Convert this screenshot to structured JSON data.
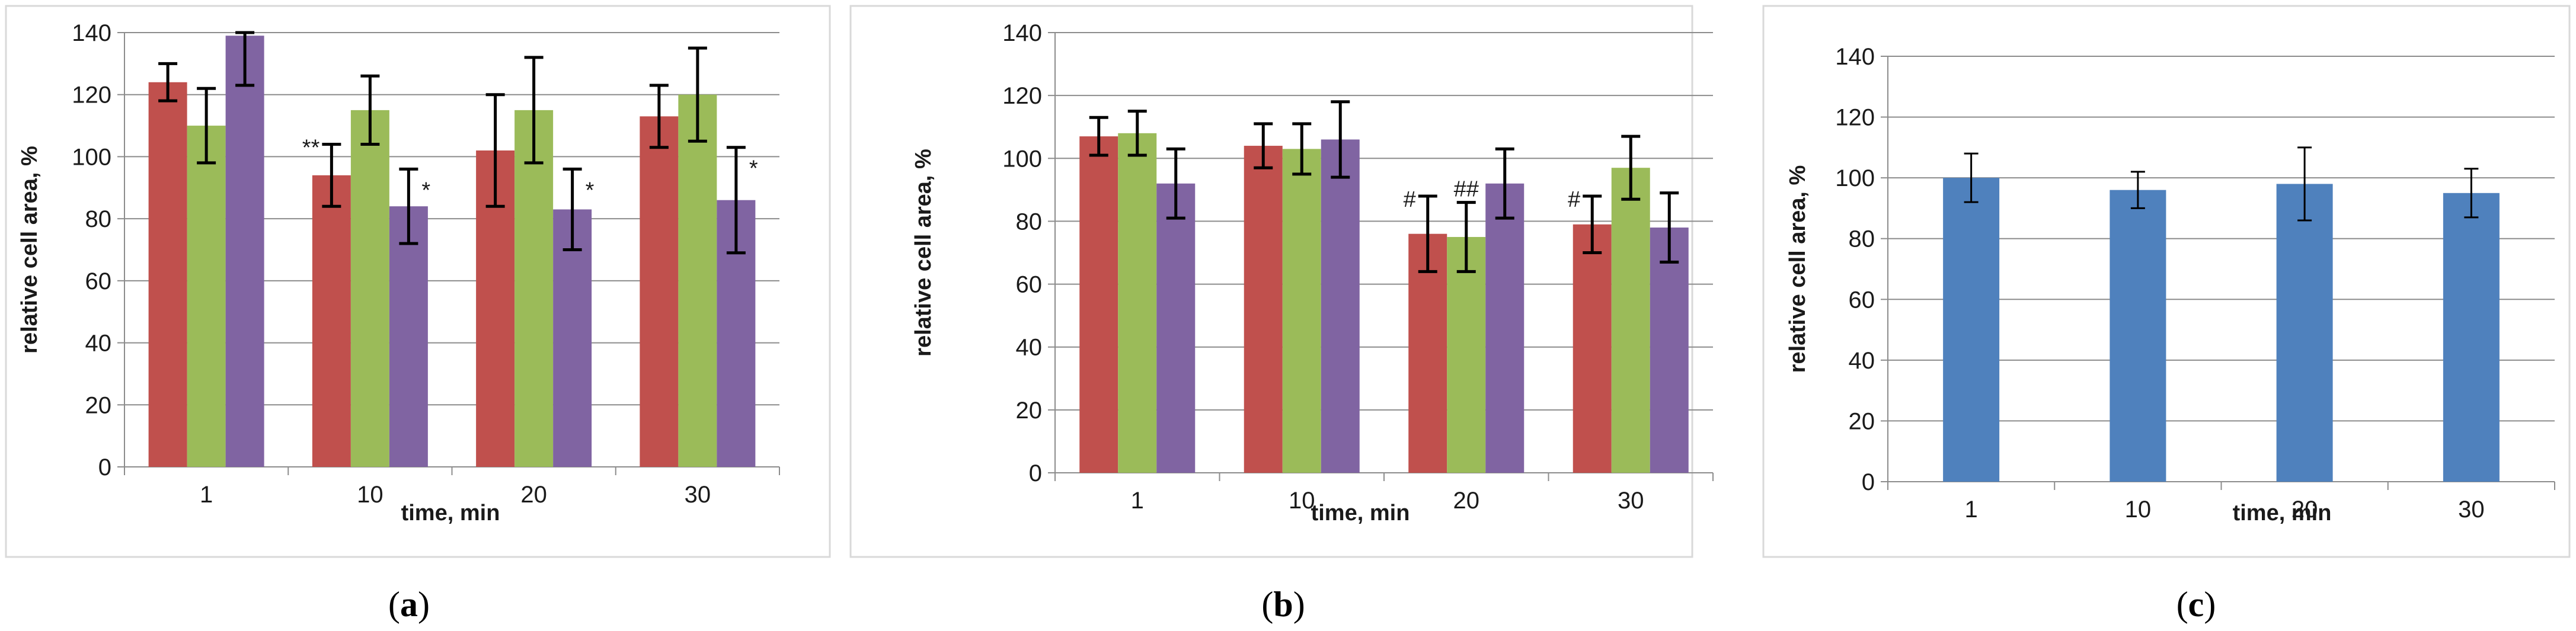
{
  "chart_data": [
    {
      "type": "bar",
      "panel_label": "a",
      "categories": [
        "1",
        "10",
        "20",
        "30"
      ],
      "xlabel": "time, min",
      "ylabel": "relative cell area, %",
      "ylim": [
        0,
        140
      ],
      "yticks": [
        "0",
        "20",
        "40",
        "60",
        "80",
        "100",
        "120",
        "140"
      ],
      "series": [
        {
          "name": "red",
          "color": "#c0504d",
          "values": [
            124,
            94,
            102,
            113
          ],
          "errors": [
            6,
            10,
            18,
            10
          ]
        },
        {
          "name": "green",
          "color": "#9bbb59",
          "values": [
            110,
            115,
            115,
            120
          ],
          "errors": [
            12,
            11,
            17,
            15
          ]
        },
        {
          "name": "purple",
          "color": "#8064a2",
          "values": [
            139,
            84,
            83,
            86
          ],
          "errors": [
            16,
            12,
            13,
            17
          ]
        }
      ],
      "annotations": [
        {
          "category": 1,
          "series": 0,
          "text": "**",
          "side": "left"
        },
        {
          "category": 1,
          "series": 2,
          "text": "*",
          "side": "right"
        },
        {
          "category": 2,
          "series": 2,
          "text": "*",
          "side": "right"
        },
        {
          "category": 3,
          "series": 2,
          "text": "*",
          "side": "right"
        }
      ]
    },
    {
      "type": "bar",
      "panel_label": "b",
      "categories": [
        "1",
        "10",
        "20",
        "30"
      ],
      "xlabel": "time, min",
      "ylabel": "relative cell area, %",
      "ylim": [
        0,
        140
      ],
      "yticks": [
        "0",
        "20",
        "40",
        "60",
        "80",
        "100",
        "120",
        "140"
      ],
      "series": [
        {
          "name": "red",
          "color": "#c0504d",
          "values": [
            107,
            104,
            76,
            79
          ],
          "errors": [
            6,
            7,
            12,
            9
          ]
        },
        {
          "name": "green",
          "color": "#9bbb59",
          "values": [
            108,
            103,
            75,
            97
          ],
          "errors": [
            7,
            8,
            11,
            10
          ]
        },
        {
          "name": "purple",
          "color": "#8064a2",
          "values": [
            92,
            106,
            92,
            78
          ],
          "errors": [
            11,
            12,
            11,
            11
          ]
        }
      ],
      "annotations": [
        {
          "category": 2,
          "series": 0,
          "text": "#",
          "side": "left"
        },
        {
          "category": 2,
          "series": 1,
          "text": "##",
          "side": "top"
        },
        {
          "category": 3,
          "series": 0,
          "text": "#",
          "side": "left"
        }
      ]
    },
    {
      "type": "bar",
      "panel_label": "c",
      "categories": [
        "1",
        "10",
        "20",
        "30"
      ],
      "xlabel": "time, min",
      "ylabel": "relative cell area, %",
      "ylim": [
        0,
        140
      ],
      "yticks": [
        "0",
        "20",
        "40",
        "60",
        "80",
        "100",
        "120",
        "140"
      ],
      "series": [
        {
          "name": "blue",
          "color": "#4f81bd",
          "values": [
            100,
            96,
            98,
            95
          ],
          "errors": [
            8,
            6,
            12,
            8
          ]
        }
      ],
      "annotations": []
    }
  ]
}
